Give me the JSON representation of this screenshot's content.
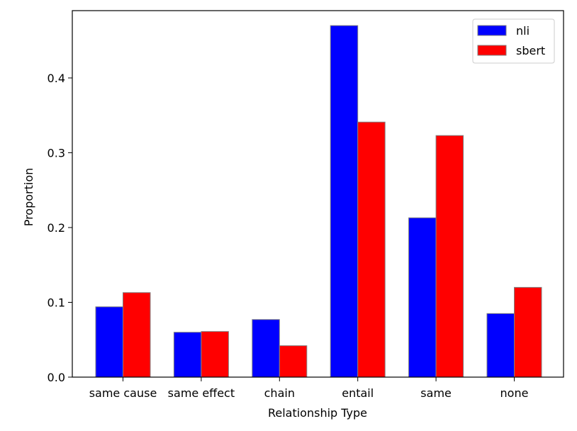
{
  "chart_data": {
    "type": "bar",
    "categories": [
      "same cause",
      "same effect",
      "chain",
      "entail",
      "same",
      "none"
    ],
    "series": [
      {
        "name": "nli",
        "values": [
          0.094,
          0.06,
          0.077,
          0.47,
          0.213,
          0.085
        ],
        "color": "#0000ff"
      },
      {
        "name": "sbert",
        "values": [
          0.113,
          0.061,
          0.042,
          0.341,
          0.323,
          0.12
        ],
        "color": "#ff0000"
      }
    ],
    "title": "",
    "xlabel": "Relationship Type",
    "ylabel": "Proportion",
    "ylim": [
      0,
      0.49
    ],
    "yticks": [
      "0.0",
      "0.1",
      "0.2",
      "0.3",
      "0.4"
    ],
    "legend_position": "top-right",
    "grid": false,
    "bar_edge_color": "#808080"
  }
}
